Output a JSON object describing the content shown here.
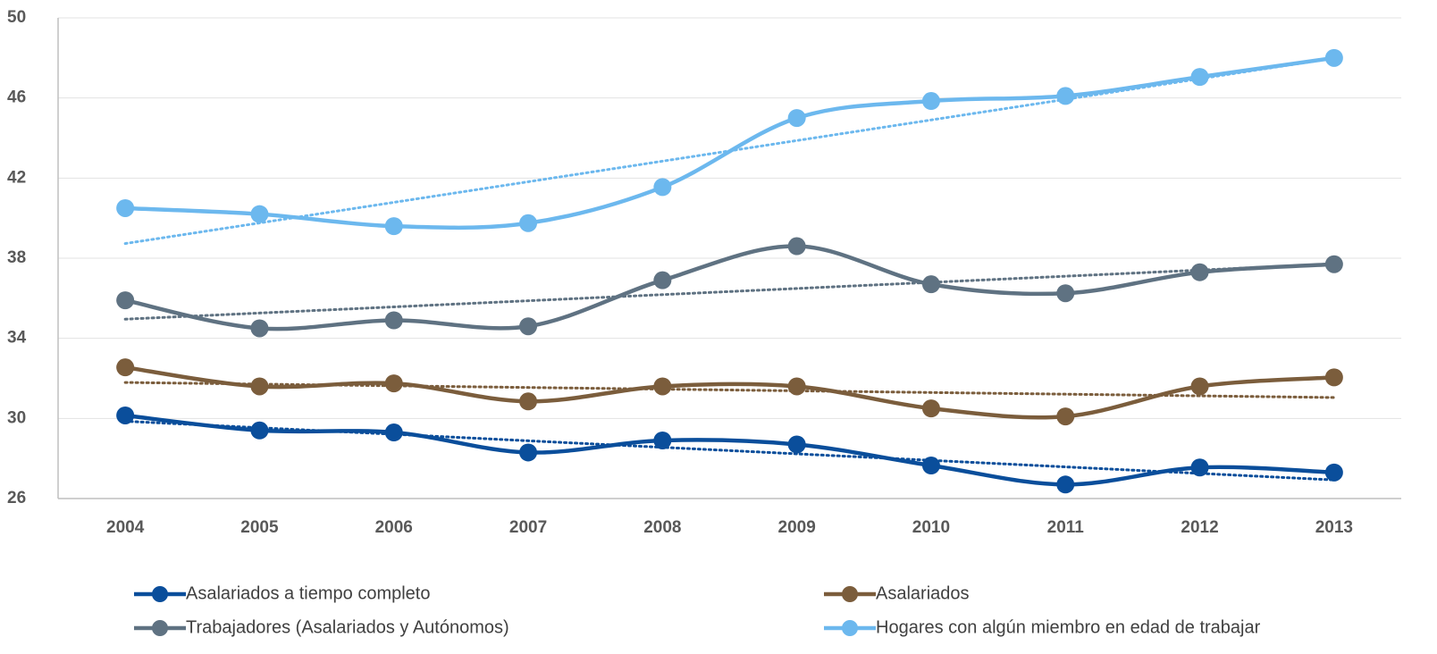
{
  "chart_data": {
    "type": "line",
    "categories": [
      "2004",
      "2005",
      "2006",
      "2007",
      "2008",
      "2009",
      "2010",
      "2011",
      "2012",
      "2013"
    ],
    "series": [
      {
        "name": "Asalariados a tiempo completo",
        "color": "#0a4e9b",
        "values": [
          30.15,
          29.4,
          29.3,
          28.3,
          28.9,
          28.7,
          27.65,
          26.7,
          27.55,
          27.3
        ]
      },
      {
        "name": "Asalariados",
        "color": "#7b5d3c",
        "values": [
          32.55,
          31.6,
          31.75,
          30.85,
          31.6,
          31.6,
          30.5,
          30.1,
          31.6,
          32.05
        ]
      },
      {
        "name": "Trabajadores (Asalariados y Autónomos)",
        "color": "#5f7282",
        "values": [
          35.9,
          34.5,
          34.9,
          34.6,
          36.9,
          38.6,
          36.7,
          36.25,
          37.3,
          37.7
        ]
      },
      {
        "name": "Hogares con algún miembro en edad de trabajar",
        "color": "#6cb8ee",
        "values": [
          40.5,
          40.2,
          39.6,
          39.75,
          41.55,
          45.0,
          45.85,
          46.1,
          47.05,
          48.0
        ]
      }
    ],
    "ylim": [
      26,
      50
    ],
    "yticks": [
      26,
      30,
      34,
      38,
      42,
      46,
      50
    ],
    "grid": true,
    "smooth": true,
    "trendline": true,
    "legend": "bottom"
  }
}
